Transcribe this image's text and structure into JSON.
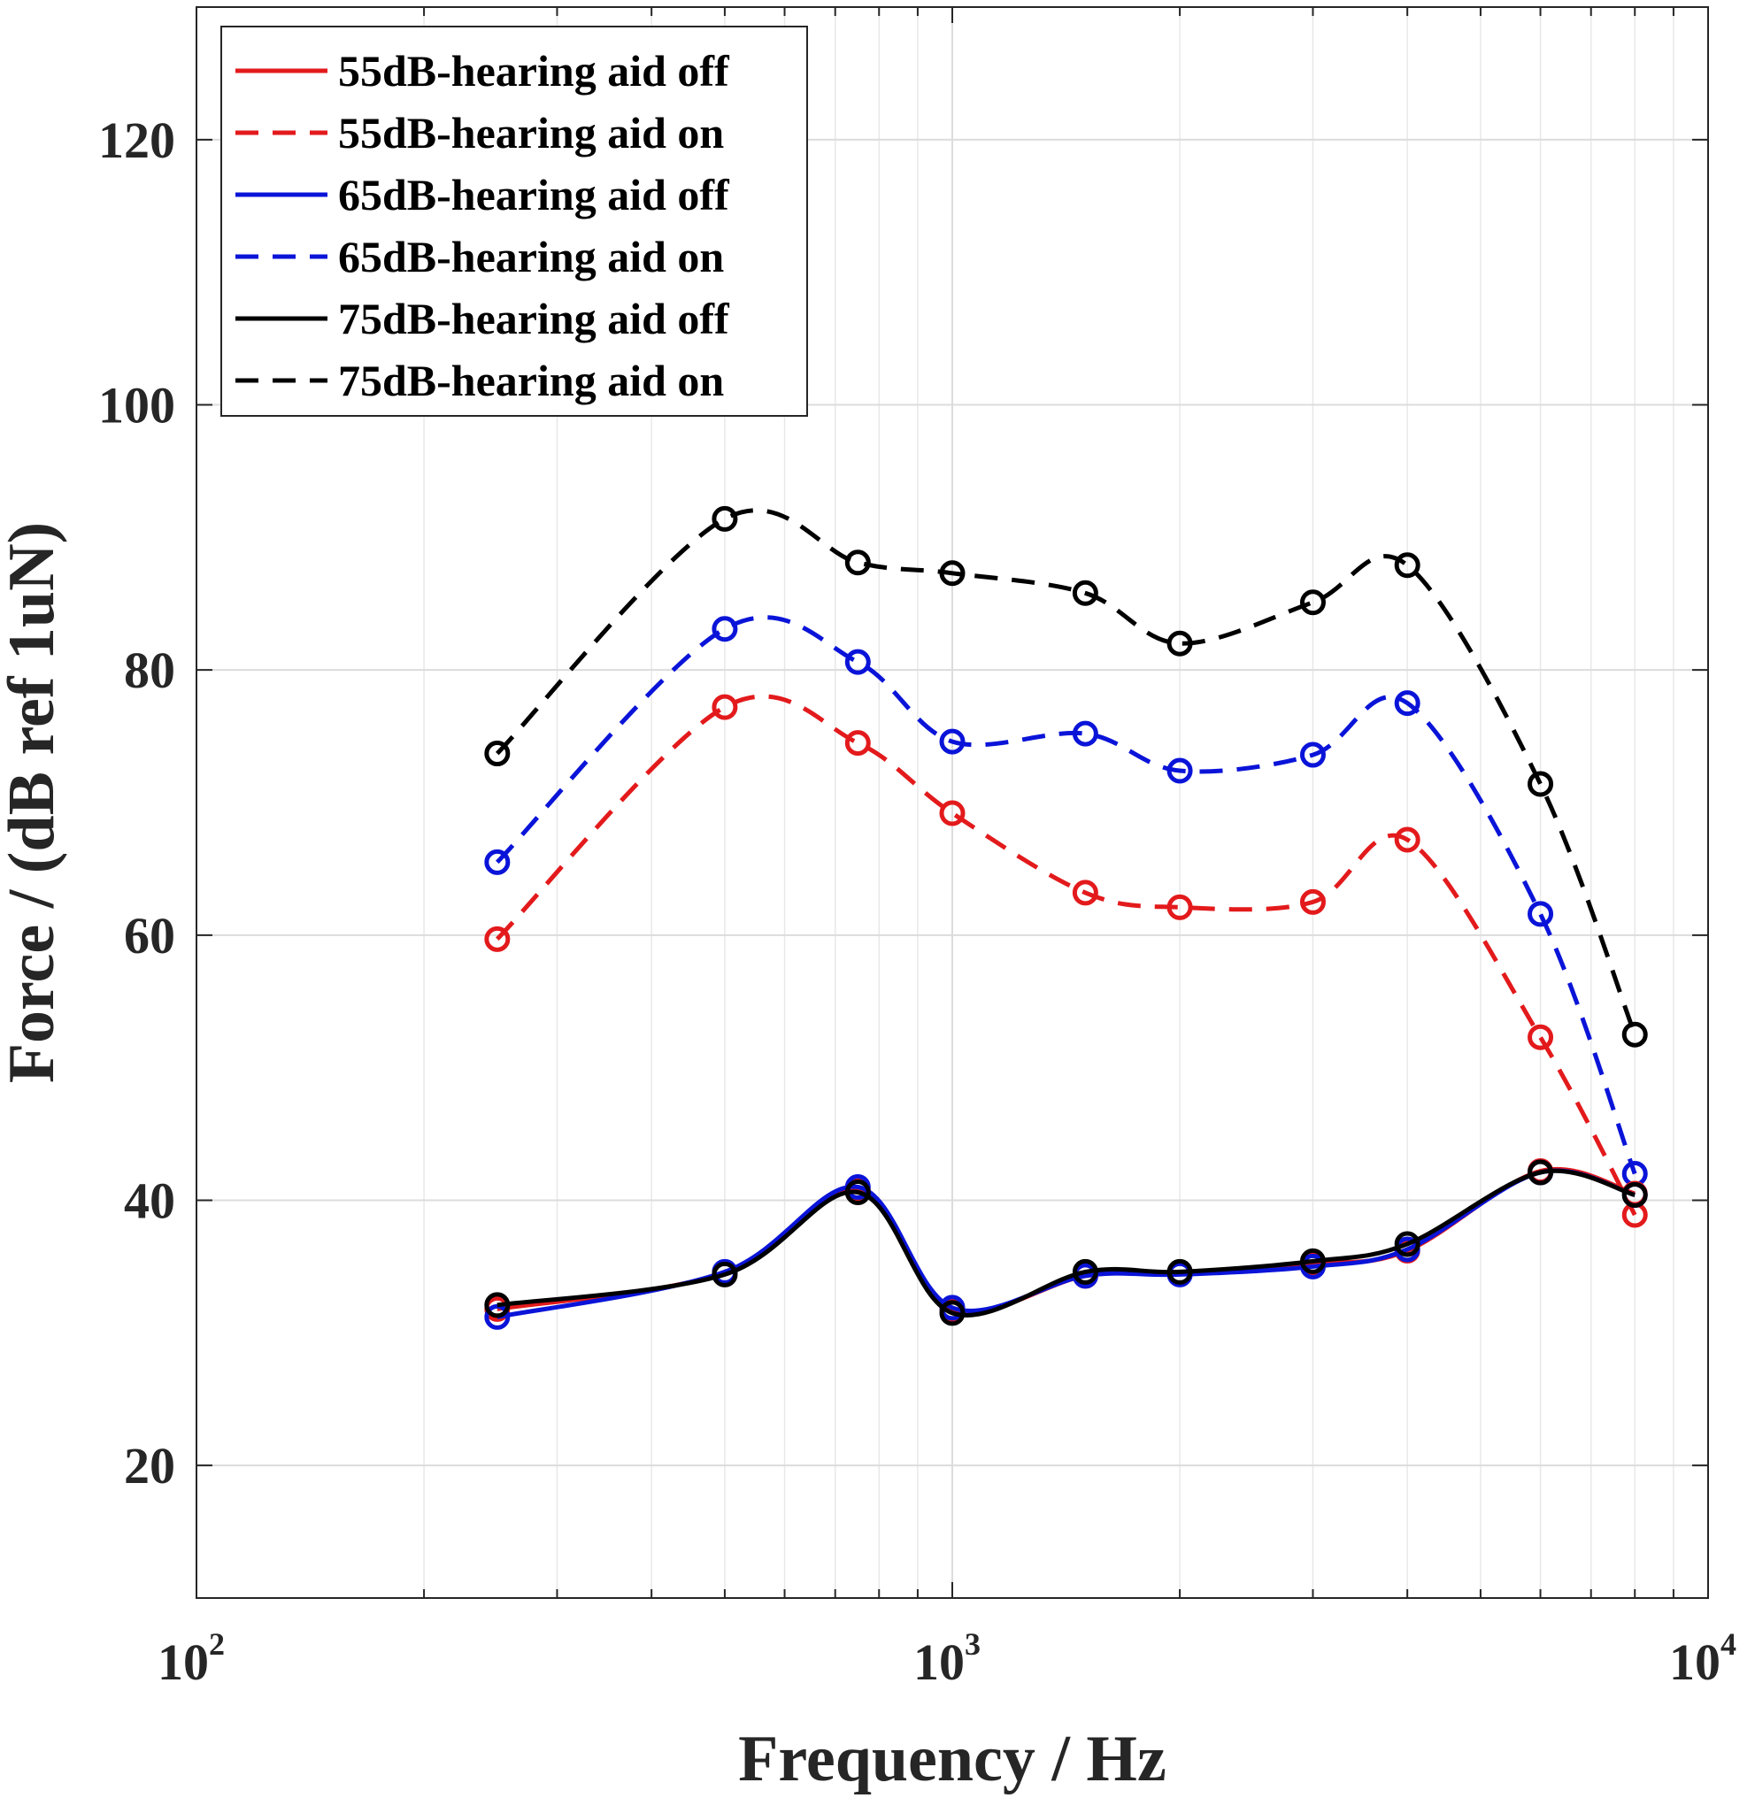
{
  "chart_data": {
    "type": "line",
    "title": "",
    "xlabel": "Frequency / Hz",
    "ylabel": "Force / (dB ref 1uN)",
    "xscale": "log",
    "xlim": [
      100,
      10000
    ],
    "ylim": [
      10,
      130
    ],
    "yticks": [
      20,
      40,
      60,
      80,
      100,
      120
    ],
    "xticks": [
      {
        "value": 100,
        "base": "10",
        "exp": "2"
      },
      {
        "value": 1000,
        "base": "10",
        "exp": "3"
      },
      {
        "value": 10000,
        "base": "10",
        "exp": "4"
      }
    ],
    "grid": true,
    "legend_position": "top-left",
    "x": [
      250,
      500,
      750,
      1000,
      1500,
      2000,
      3000,
      4000,
      6000,
      8000
    ],
    "series": [
      {
        "name": "55dB-hearing aid off",
        "color": "#e31a1c",
        "dash": "solid",
        "values": [
          31.8,
          34.5,
          40.8,
          31.8,
          34.3,
          34.5,
          35.2,
          36.2,
          42.2,
          40.5
        ]
      },
      {
        "name": "55dB-hearing aid on",
        "color": "#e31a1c",
        "dash": "dashed",
        "values": [
          59.7,
          77.2,
          74.5,
          69.2,
          63.2,
          62.1,
          62.5,
          67.2,
          52.3,
          38.9
        ]
      },
      {
        "name": "65dB-hearing aid off",
        "color": "#0a14d8",
        "dash": "solid",
        "values": [
          31.2,
          34.6,
          41.0,
          31.9,
          34.3,
          34.4,
          35.0,
          36.3,
          42.1,
          40.4
        ]
      },
      {
        "name": "65dB-hearing aid on",
        "color": "#0a14d8",
        "dash": "dashed",
        "values": [
          65.5,
          83.1,
          80.6,
          74.6,
          75.2,
          72.4,
          73.6,
          77.5,
          61.6,
          42.0
        ]
      },
      {
        "name": "75dB-hearing aid off",
        "color": "#000000",
        "dash": "solid",
        "values": [
          32.1,
          34.4,
          40.6,
          31.5,
          34.6,
          34.6,
          35.4,
          36.7,
          42.1,
          40.4
        ]
      },
      {
        "name": "75dB-hearing aid on",
        "color": "#000000",
        "dash": "dashed",
        "values": [
          73.7,
          91.4,
          88.1,
          87.3,
          85.8,
          82.0,
          85.1,
          87.9,
          71.4,
          52.5
        ]
      }
    ]
  }
}
